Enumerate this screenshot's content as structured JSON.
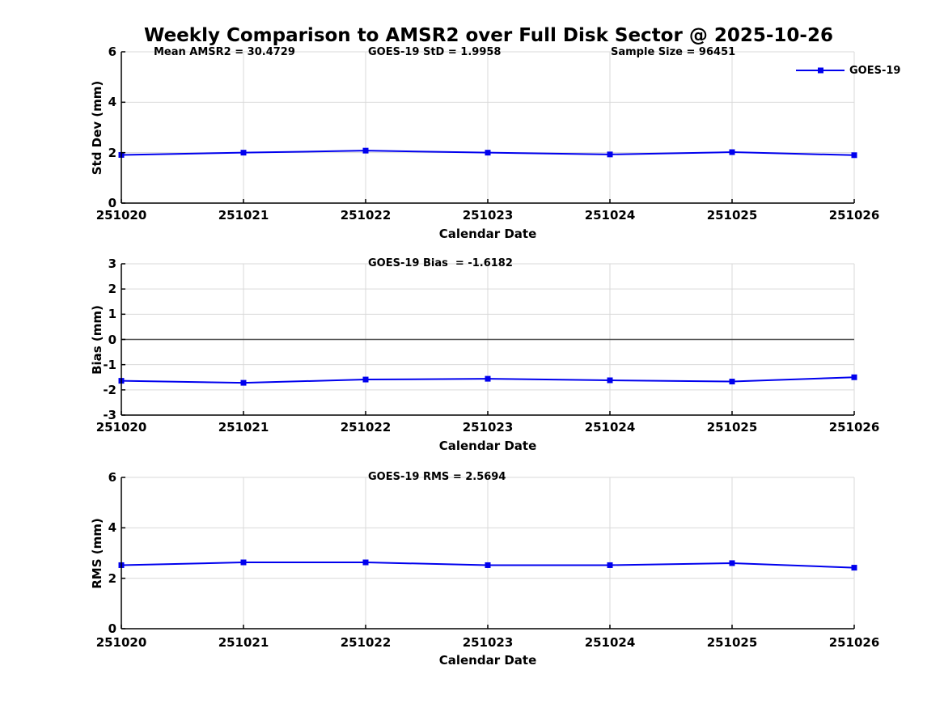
{
  "title": "Weekly Comparison to AMSR2 over Full Disk Sector @ 2025-10-26",
  "legend": {
    "label": "GOES-19"
  },
  "colors": {
    "line": "#0000EE",
    "marker": "#0000EE",
    "grid": "#d9d9d9",
    "axis": "#000000",
    "zero_line": "#4d4d4d",
    "text": "#000000",
    "background": "#ffffff"
  },
  "chart_data": [
    {
      "type": "line",
      "annotations": [
        "Mean AMSR2 = 30.4729",
        "GOES-19 StD = 1.9958",
        "Sample Size = 96451"
      ],
      "xlabel": "Calendar Date",
      "ylabel": "Std Dev (mm)",
      "categories": [
        "251020",
        "251021",
        "251022",
        "251023",
        "251024",
        "251025",
        "251026"
      ],
      "series": [
        {
          "name": "GOES-19",
          "values": [
            1.91,
            2.0,
            2.08,
            2.0,
            1.93,
            2.02,
            1.9
          ]
        }
      ],
      "ylim": [
        0,
        6
      ],
      "yticks": [
        0,
        2,
        4,
        6
      ],
      "grid": true,
      "zero_line": false,
      "legend_position": "top-right-outside"
    },
    {
      "type": "line",
      "annotations": [
        "GOES-19 Bias  = -1.6182"
      ],
      "xlabel": "Calendar Date",
      "ylabel": "Bias (mm)",
      "categories": [
        "251020",
        "251021",
        "251022",
        "251023",
        "251024",
        "251025",
        "251026"
      ],
      "series": [
        {
          "name": "GOES-19",
          "values": [
            -1.64,
            -1.72,
            -1.59,
            -1.56,
            -1.62,
            -1.67,
            -1.5
          ]
        }
      ],
      "ylim": [
        -3,
        3
      ],
      "yticks": [
        -3,
        -2,
        -1,
        0,
        1,
        2,
        3
      ],
      "grid": true,
      "zero_line": true,
      "legend_position": "none"
    },
    {
      "type": "line",
      "annotations": [
        "GOES-19 RMS = 2.5694"
      ],
      "xlabel": "Calendar Date",
      "ylabel": "RMS (mm)",
      "categories": [
        "251020",
        "251021",
        "251022",
        "251023",
        "251024",
        "251025",
        "251026"
      ],
      "series": [
        {
          "name": "GOES-19",
          "values": [
            2.52,
            2.63,
            2.63,
            2.52,
            2.52,
            2.6,
            2.42
          ]
        }
      ],
      "ylim": [
        0,
        6
      ],
      "yticks": [
        0,
        2,
        4,
        6
      ],
      "grid": true,
      "zero_line": false,
      "legend_position": "none"
    }
  ]
}
